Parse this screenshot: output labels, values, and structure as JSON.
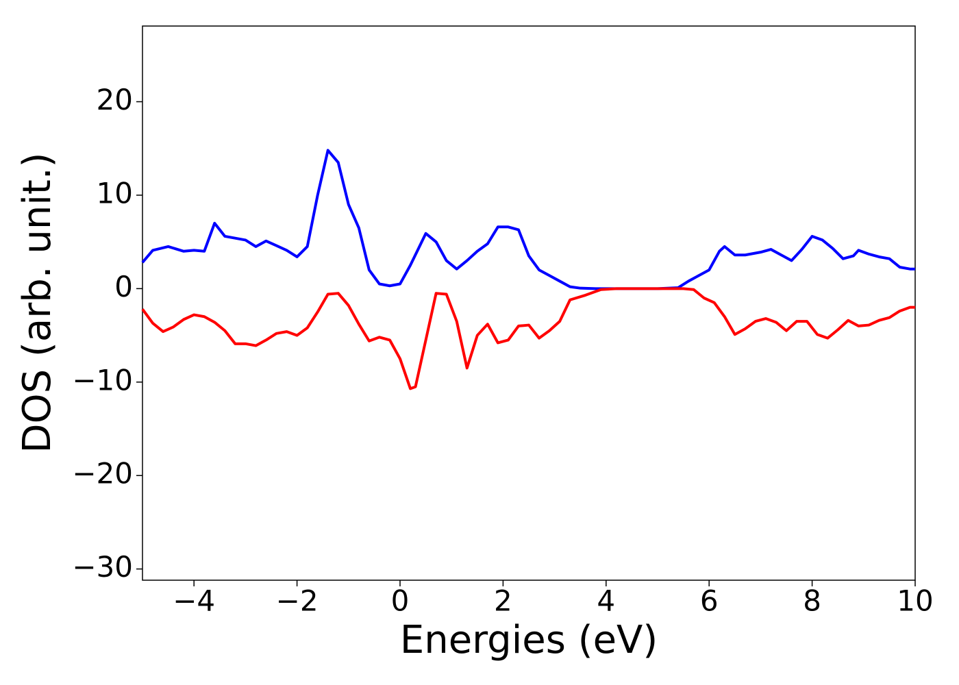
{
  "chart_data": {
    "type": "line",
    "xlabel": "Energies (eV)",
    "ylabel": "DOS (arb. unit.)",
    "xlim": [
      -5,
      10
    ],
    "ylim": [
      -31.2,
      28.1
    ],
    "xticks": [
      {
        "value": -4,
        "label": "−4"
      },
      {
        "value": -2,
        "label": "−2"
      },
      0,
      2,
      4,
      6,
      8,
      10
    ],
    "yticks": [
      {
        "value": -30,
        "label": "−30"
      },
      {
        "value": -20,
        "label": "−20"
      },
      {
        "value": -10,
        "label": "−10"
      },
      0,
      10,
      20
    ],
    "grid": false,
    "series": [
      {
        "color": "#0000ff",
        "x": [
          -5,
          -4.8,
          -4.5,
          -4.2,
          -4.0,
          -3.8,
          -3.6,
          -3.4,
          -3.2,
          -3.0,
          -2.8,
          -2.6,
          -2.4,
          -2.2,
          -2.0,
          -1.8,
          -1.6,
          -1.4,
          -1.2,
          -1.0,
          -0.8,
          -0.6,
          -0.4,
          -0.2,
          0,
          0.2,
          0.5,
          0.7,
          0.9,
          1.1,
          1.3,
          1.5,
          1.7,
          1.9,
          2.1,
          2.3,
          2.5,
          2.7,
          2.9,
          3.1,
          3.3,
          3.5,
          3.8,
          4,
          5,
          5.4,
          5.6,
          5.8,
          6.0,
          6.2,
          6.3,
          6.5,
          6.7,
          7.0,
          7.2,
          7.4,
          7.6,
          7.8,
          8.0,
          8.2,
          8.4,
          8.6,
          8.8,
          8.9,
          9.1,
          9.3,
          9.5,
          9.7,
          9.9,
          10
        ],
        "values": [
          2.8,
          4.1,
          4.5,
          4.0,
          4.1,
          4.0,
          7.0,
          5.6,
          5.4,
          5.2,
          4.5,
          5.1,
          4.6,
          4.1,
          3.4,
          4.5,
          10,
          14.8,
          13.5,
          9,
          6.5,
          2.0,
          0.5,
          0.3,
          0.5,
          2.5,
          5.9,
          5.0,
          3.0,
          2.1,
          3.0,
          4.0,
          4.8,
          6.6,
          6.6,
          6.3,
          3.5,
          2.0,
          1.4,
          0.8,
          0.2,
          0.05,
          0,
          0,
          0,
          0.1,
          0.8,
          1.4,
          2.0,
          4.0,
          4.5,
          3.6,
          3.6,
          3.9,
          4.2,
          3.6,
          3.0,
          4.2,
          5.6,
          5.2,
          4.3,
          3.2,
          3.5,
          4.1,
          3.7,
          3.4,
          3.2,
          2.3,
          2.1,
          2.1
        ]
      },
      {
        "color": "#ff0000",
        "x": [
          -5,
          -4.8,
          -4.6,
          -4.4,
          -4.2,
          -4.0,
          -3.8,
          -3.6,
          -3.4,
          -3.2,
          -3.0,
          -2.8,
          -2.6,
          -2.4,
          -2.2,
          -2.0,
          -1.8,
          -1.6,
          -1.4,
          -1.2,
          -1.0,
          -0.8,
          -0.6,
          -0.4,
          -0.2,
          0,
          0.2,
          0.3,
          0.5,
          0.7,
          0.9,
          1.1,
          1.3,
          1.5,
          1.7,
          1.9,
          2.1,
          2.3,
          2.5,
          2.7,
          2.9,
          3.1,
          3.3,
          3.6,
          3.9,
          4.2,
          5.5,
          5.7,
          5.9,
          6.1,
          6.3,
          6.5,
          6.7,
          6.9,
          7.1,
          7.3,
          7.5,
          7.7,
          7.9,
          8.1,
          8.3,
          8.5,
          8.7,
          8.9,
          9.1,
          9.3,
          9.5,
          9.7,
          9.9,
          10
        ],
        "values": [
          -2.2,
          -3.7,
          -4.6,
          -4.1,
          -3.3,
          -2.8,
          -3.0,
          -3.6,
          -4.5,
          -5.9,
          -5.9,
          -6.1,
          -5.5,
          -4.8,
          -4.6,
          -5.0,
          -4.2,
          -2.5,
          -0.6,
          -0.5,
          -1.8,
          -3.8,
          -5.6,
          -5.2,
          -5.5,
          -7.5,
          -10.7,
          -10.5,
          -5.5,
          -0.5,
          -0.6,
          -3.5,
          -8.5,
          -5.0,
          -3.8,
          -5.8,
          -5.5,
          -4.0,
          -3.9,
          -5.3,
          -4.5,
          -3.5,
          -1.2,
          -0.7,
          -0.1,
          0,
          0,
          -0.1,
          -1.0,
          -1.5,
          -3.0,
          -4.9,
          -4.3,
          -3.5,
          -3.2,
          -3.6,
          -4.5,
          -3.5,
          -3.5,
          -4.9,
          -5.3,
          -4.4,
          -3.4,
          -4.0,
          -3.9,
          -3.4,
          -3.1,
          -2.4,
          -2.0,
          -2.0
        ]
      }
    ]
  }
}
